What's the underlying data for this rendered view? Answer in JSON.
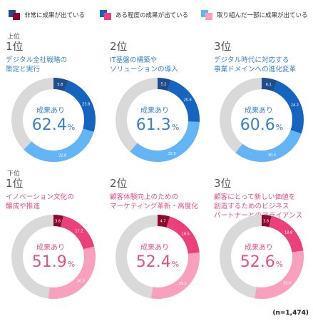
{
  "legend": [
    {
      "label": "非常に成果が出ている",
      "colors": [
        "#1f4e8c",
        "#8b0a2e"
      ]
    },
    {
      "label": "ある程度の成果が出ている",
      "colors": [
        "#1565c0",
        "#ec407a"
      ]
    },
    {
      "label": "取り組んだ一部に成果が出ている",
      "colors": [
        "#64b5f6",
        "#f8a0be"
      ]
    }
  ],
  "note": "(n=1,474)",
  "result_label": "成果あり",
  "percent_sign": "%",
  "chart_data": [
    {
      "type": "pie",
      "group": "上位",
      "rank": "1位",
      "lines": [
        "デジタル全社戦略の",
        "策定と実行"
      ],
      "total": "62.4",
      "values": [
        5.8,
        23.8,
        32.8
      ],
      "value_labels": [
        "5.8",
        "23.8",
        "32.8"
      ],
      "colors": [
        "#1f4e8c",
        "#1565c0",
        "#64b5f6"
      ],
      "text_color": "#3b82c4"
    },
    {
      "type": "pie",
      "group": "",
      "rank": "2位",
      "lines": [
        "IT基盤の構築や",
        "ソリューションの導入"
      ],
      "total": "61.3",
      "values": [
        5.2,
        20.6,
        35.5
      ],
      "value_labels": [
        "5.2",
        "20.6",
        "35.5"
      ],
      "colors": [
        "#1f4e8c",
        "#1565c0",
        "#64b5f6"
      ],
      "text_color": "#3b82c4"
    },
    {
      "type": "pie",
      "group": "",
      "rank": "3位",
      "lines": [
        "デジタル時代に対応する",
        "事業ドメインへの進化変革"
      ],
      "total": "60.6",
      "values": [
        6.1,
        24.2,
        30.3
      ],
      "value_labels": [
        "6.1",
        "24.2",
        "30.3"
      ],
      "colors": [
        "#1f4e8c",
        "#1565c0",
        "#64b5f6"
      ],
      "text_color": "#3b82c4"
    },
    {
      "type": "pie",
      "group": "下位",
      "rank": "1位",
      "lines": [
        "イノベーション文化の",
        "醸成や推進"
      ],
      "total": "51.9",
      "values": [
        3.8,
        17.2,
        30.9
      ],
      "value_labels": [
        "3.8",
        "17.2",
        "30.9"
      ],
      "colors": [
        "#8b0a2e",
        "#ec407a",
        "#f8a0be"
      ],
      "text_color": "#e0518a"
    },
    {
      "type": "pie",
      "group": "",
      "rank": "2位",
      "lines": [
        "顧客体験向上のための",
        "マーケティング革新・高度化"
      ],
      "total": "52.4",
      "values": [
        4.7,
        18.6,
        29.1
      ],
      "value_labels": [
        "4.7",
        "18.6",
        "29.1"
      ],
      "colors": [
        "#8b0a2e",
        "#ec407a",
        "#f8a0be"
      ],
      "text_color": "#e0518a"
    },
    {
      "type": "pie",
      "group": "",
      "rank": "3位",
      "lines": [
        "顧客にとって新しい価値を",
        "創造するためのビジネス",
        "パートナーとのアライアンス"
      ],
      "total": "52.6",
      "values": [
        3.8,
        18.8,
        30.0
      ],
      "value_labels": [
        "3.8",
        "18.8",
        "30.0"
      ],
      "colors": [
        "#8b0a2e",
        "#ec407a",
        "#f8a0be"
      ],
      "text_color": "#e0518a"
    }
  ]
}
